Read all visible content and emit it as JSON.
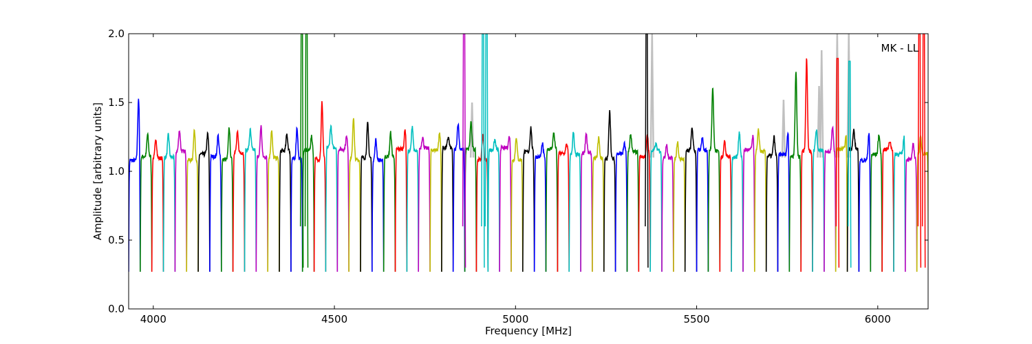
{
  "chart_data": {
    "type": "line",
    "title": "",
    "annotation": "MK - LL",
    "xlabel": "Frequency [MHz]",
    "ylabel": "Amplitude [arbitrary units]",
    "xlim": [
      3932,
      6139
    ],
    "ylim": [
      0.0,
      2.0
    ],
    "xticks": [
      4000,
      4500,
      5000,
      5500,
      6000
    ],
    "xtick_labels": [
      "4000",
      "4500",
      "5000",
      "5500",
      "6000"
    ],
    "yticks": [
      0.0,
      0.5,
      1.0,
      1.5,
      2.0
    ],
    "ytick_labels": [
      "0.0",
      "0.5",
      "1.0",
      "1.5",
      "2.0"
    ],
    "grid": false,
    "color_cycle": [
      "#0000ff",
      "#008000",
      "#ff0000",
      "#00bfbf",
      "#bf00bf",
      "#bfbf00",
      "#000000"
    ],
    "flagged_color": "#c0c0c0",
    "window_start_mhz": 3932,
    "window_width_mhz": 32,
    "window_edge_min": 0.27,
    "window_peaks": [
      1.53,
      1.27,
      1.24,
      1.27,
      1.3,
      1.3,
      1.27,
      1.26,
      1.32,
      1.28,
      1.3,
      1.33,
      1.3,
      1.27,
      1.32,
      1.25,
      1.5,
      1.33,
      1.25,
      1.39,
      1.35,
      1.23,
      1.28,
      1.3,
      1.33,
      1.25,
      1.27,
      1.25,
      1.35,
      1.36,
      1.27,
      1.23,
      1.25,
      1.25,
      1.32,
      1.2,
      1.28,
      1.2,
      1.28,
      1.28,
      1.25,
      1.45,
      1.2,
      1.27,
      1.27,
      1.2,
      1.2,
      1.22,
      1.32,
      1.25,
      1.62,
      1.22,
      1.29,
      1.25,
      1.3,
      1.25,
      1.28,
      1.73,
      1.82,
      1.3,
      1.32,
      1.25,
      1.3,
      1.28,
      1.27,
      1.22,
      1.25,
      1.2,
      1.25
    ],
    "spikes": [
      {
        "freq": 4410,
        "amp": 2.0,
        "series": 1
      },
      {
        "freq": 4423,
        "amp": 2.0,
        "series": 1
      },
      {
        "freq": 4858,
        "amp": 2.0,
        "series": 4
      },
      {
        "freq": 4910,
        "amp": 2.0,
        "series": 3
      },
      {
        "freq": 4920,
        "amp": 2.0,
        "series": 3
      },
      {
        "freq": 5362,
        "amp": 2.0,
        "series": 6
      },
      {
        "freq": 5889,
        "amp": 1.82,
        "series": 2
      },
      {
        "freq": 5922,
        "amp": 1.8,
        "series": 3
      },
      {
        "freq": 6115,
        "amp": 2.0,
        "series": 2
      },
      {
        "freq": 6127,
        "amp": 2.0,
        "series": 2
      }
    ],
    "flagged_spikes": [
      {
        "freq": 4880,
        "amp": 1.5
      },
      {
        "freq": 5377,
        "amp": 2.0
      },
      {
        "freq": 5740,
        "amp": 1.52
      },
      {
        "freq": 5838,
        "amp": 1.62
      },
      {
        "freq": 5845,
        "amp": 1.88
      },
      {
        "freq": 5888,
        "amp": 2.0
      },
      {
        "freq": 5920,
        "amp": 2.0
      }
    ]
  }
}
